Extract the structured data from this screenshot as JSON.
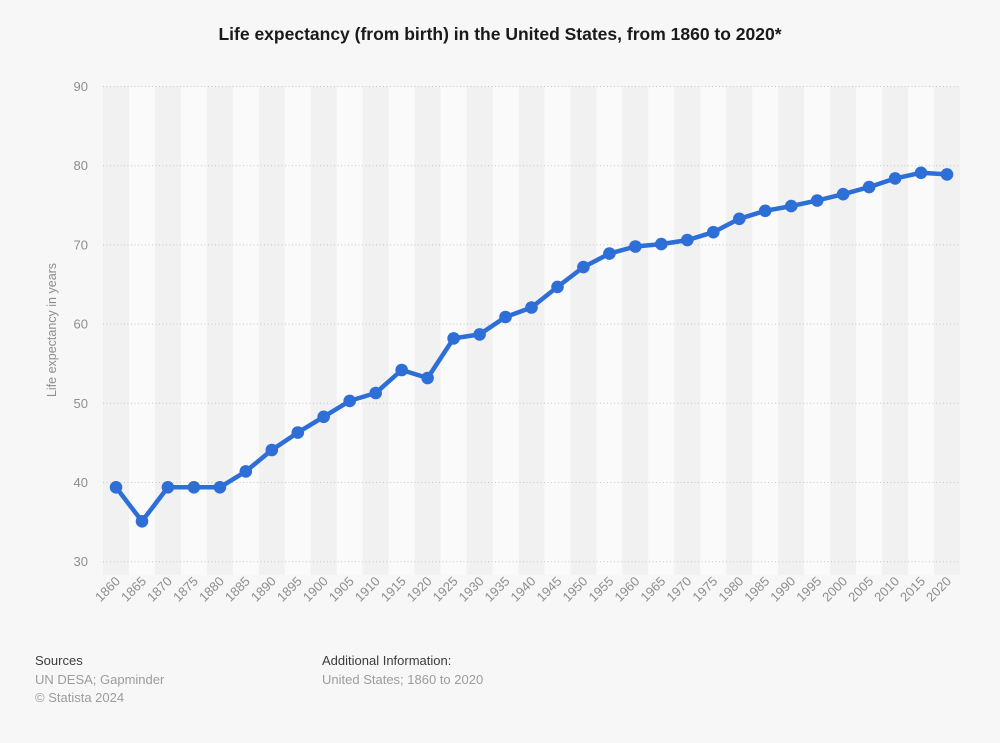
{
  "page": {
    "background": "#f7f7f7"
  },
  "chart_data": {
    "type": "line",
    "title": "Life expectancy (from birth) in the United States, from 1860 to 2020*",
    "x": [
      1860,
      1865,
      1870,
      1875,
      1880,
      1885,
      1890,
      1895,
      1900,
      1905,
      1910,
      1915,
      1920,
      1925,
      1930,
      1935,
      1940,
      1945,
      1950,
      1955,
      1960,
      1965,
      1970,
      1975,
      1980,
      1985,
      1990,
      1995,
      2000,
      2005,
      2010,
      2015,
      2020
    ],
    "values": [
      39.4,
      35.1,
      39.4,
      39.4,
      39.4,
      41.4,
      44.1,
      46.3,
      48.3,
      50.3,
      51.3,
      54.2,
      53.2,
      58.2,
      58.7,
      60.9,
      62.1,
      64.7,
      67.2,
      68.9,
      69.8,
      70.1,
      70.6,
      71.6,
      73.3,
      74.3,
      74.9,
      75.6,
      76.4,
      77.3,
      78.4,
      79.1,
      78.9
    ],
    "xlabel": "",
    "ylabel": "Life expectancy in years",
    "ylim": [
      30,
      90
    ],
    "yticks": [
      90,
      80,
      70,
      60,
      50,
      40,
      30
    ],
    "grid": "dotted-horizontal",
    "legend": "none",
    "marker": "circle",
    "plot_bands": "alternating-vertical-stripes"
  },
  "colors": {
    "accent": "#2d6ed7",
    "grid": "#c8c8c8",
    "band_dark": "#f1f1f1",
    "band_light": "#fafafa",
    "text_primary": "#1a1a1a",
    "text_secondary": "#8e8e8e",
    "background": "#f7f7f7"
  },
  "footer": {
    "sources_heading": "Sources",
    "sources": "UN DESA; Gapminder",
    "copyright": "© Statista 2024",
    "additional_heading": "Additional Information:",
    "additional_info": "United States; 1860 to 2020"
  }
}
